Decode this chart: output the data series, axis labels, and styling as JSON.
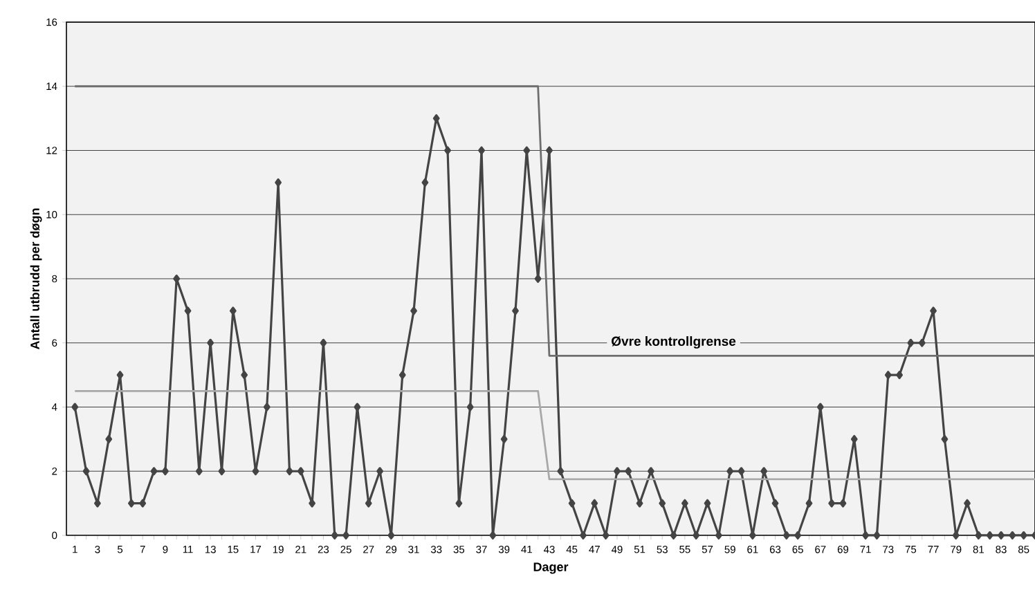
{
  "chart_data": {
    "type": "line",
    "xlabel": "Dager",
    "ylabel": "Antall utbrudd per døgn",
    "categories": [
      "1",
      null,
      "3",
      null,
      "5",
      null,
      "7",
      null,
      "9",
      null,
      "11",
      null,
      "13",
      null,
      "15",
      null,
      "17",
      null,
      "19",
      null,
      "21",
      null,
      "23",
      null,
      "25",
      null,
      "27",
      null,
      "29",
      null,
      "31",
      null,
      "33",
      null,
      "35",
      null,
      "37",
      null,
      "39",
      null,
      "41",
      null,
      "43",
      null,
      "45",
      null,
      "47",
      null,
      "49",
      null,
      "51",
      null,
      "53",
      null,
      "55",
      null,
      "57",
      null,
      "59",
      null,
      "61",
      null,
      "63",
      null,
      "65",
      null,
      "67",
      null,
      "69",
      null,
      "71",
      null,
      "73",
      null,
      "75",
      null,
      "77",
      null,
      "79",
      null,
      "81",
      null,
      "83",
      null,
      "85",
      null
    ],
    "series": [
      {
        "color": "#444444",
        "marker": "diamond",
        "values": [
          4,
          2,
          1,
          3,
          5,
          1,
          1,
          2,
          2,
          8,
          7,
          2,
          6,
          2,
          7,
          5,
          2,
          4,
          11,
          2,
          2,
          1,
          6,
          0,
          0,
          4,
          1,
          2,
          0,
          5,
          7,
          11,
          13,
          12,
          1,
          4,
          12,
          0,
          3,
          7,
          12,
          8,
          12,
          2,
          1,
          0,
          1,
          0,
          2,
          2,
          1,
          2,
          1,
          0,
          1,
          0,
          1,
          0,
          2,
          2,
          0,
          2,
          1,
          0,
          0,
          1,
          4,
          1,
          1,
          3,
          0,
          0,
          5,
          5,
          6,
          6,
          7,
          3,
          0,
          1,
          0,
          0,
          0,
          0,
          0,
          0
        ]
      },
      {
        "name": "Øvre kontrollgrense",
        "color": "#6e6e6e",
        "marker": "none",
        "values": [
          14,
          14,
          14,
          14,
          14,
          14,
          14,
          14,
          14,
          14,
          14,
          14,
          14,
          14,
          14,
          14,
          14,
          14,
          14,
          14,
          14,
          14,
          14,
          14,
          14,
          14,
          14,
          14,
          14,
          14,
          14,
          14,
          14,
          14,
          14,
          14,
          14,
          14,
          14,
          14,
          14,
          14,
          5.6,
          5.6,
          5.6,
          5.6,
          5.6,
          5.6,
          5.6,
          5.6,
          5.6,
          5.6,
          5.6,
          5.6,
          5.6,
          5.6,
          5.6,
          5.6,
          5.6,
          5.6,
          5.6,
          5.6,
          5.6,
          5.6,
          5.6,
          5.6,
          5.6,
          5.6,
          5.6,
          5.6,
          5.6,
          5.6,
          5.6,
          5.6,
          5.6,
          5.6,
          5.6,
          5.6,
          5.6,
          5.6,
          5.6,
          5.6,
          5.6,
          5.6,
          5.6,
          5.6
        ]
      },
      {
        "color": "#a8a8a8",
        "marker": "none",
        "values": [
          4.5,
          4.5,
          4.5,
          4.5,
          4.5,
          4.5,
          4.5,
          4.5,
          4.5,
          4.5,
          4.5,
          4.5,
          4.5,
          4.5,
          4.5,
          4.5,
          4.5,
          4.5,
          4.5,
          4.5,
          4.5,
          4.5,
          4.5,
          4.5,
          4.5,
          4.5,
          4.5,
          4.5,
          4.5,
          4.5,
          4.5,
          4.5,
          4.5,
          4.5,
          4.5,
          4.5,
          4.5,
          4.5,
          4.5,
          4.5,
          4.5,
          4.5,
          1.75,
          1.75,
          1.75,
          1.75,
          1.75,
          1.75,
          1.75,
          1.75,
          1.75,
          1.75,
          1.75,
          1.75,
          1.75,
          1.75,
          1.75,
          1.75,
          1.75,
          1.75,
          1.75,
          1.75,
          1.75,
          1.75,
          1.75,
          1.75,
          1.75,
          1.75,
          1.75,
          1.75,
          1.75,
          1.75,
          1.75,
          1.75,
          1.75,
          1.75,
          1.75,
          1.75,
          1.75,
          1.75,
          1.75,
          1.75,
          1.75,
          1.75,
          1.75,
          1.75
        ]
      }
    ],
    "ylim": [
      0,
      16
    ],
    "yticks": [
      0,
      2,
      4,
      6,
      8,
      10,
      12,
      14,
      16
    ],
    "grid": "y"
  }
}
